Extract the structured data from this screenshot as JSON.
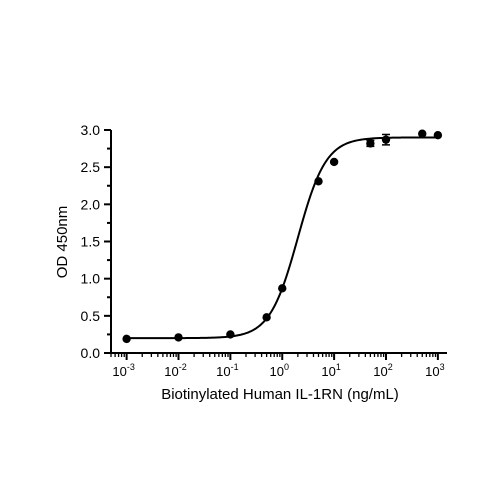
{
  "chart_data": {
    "type": "scatter",
    "xlabel": "Biotinylated Human IL-1RN (ng/mL)",
    "ylabel": "OD 450nm",
    "xscale": "log",
    "xlim": [
      0.0005,
      1500
    ],
    "ylim": [
      0,
      3.0
    ],
    "x_ticks": [
      0.001,
      0.01,
      0.1,
      1,
      10,
      100,
      1000
    ],
    "x_tick_exponents": [
      "-3",
      "-2",
      "-1",
      "0",
      "1",
      "2",
      "3"
    ],
    "x_tick_base": "10",
    "y_ticks": [
      "0.0",
      "0.5",
      "1.0",
      "1.5",
      "2.0",
      "2.5",
      "3.0"
    ],
    "grid": false,
    "series": [
      {
        "points": [
          {
            "x": 0.001,
            "y": 0.19,
            "err": 0
          },
          {
            "x": 0.01,
            "y": 0.21,
            "err": 0
          },
          {
            "x": 0.1,
            "y": 0.25,
            "err": 0
          },
          {
            "x": 0.5,
            "y": 0.48,
            "err": 0
          },
          {
            "x": 1,
            "y": 0.87,
            "err": 0
          },
          {
            "x": 5,
            "y": 2.31,
            "err": 0
          },
          {
            "x": 10,
            "y": 2.57,
            "err": 0
          },
          {
            "x": 50,
            "y": 2.82,
            "err": 0.04
          },
          {
            "x": 100,
            "y": 2.87,
            "err": 0.07
          },
          {
            "x": 500,
            "y": 2.95,
            "err": 0
          },
          {
            "x": 1000,
            "y": 2.93,
            "err": 0
          }
        ],
        "fit": {
          "bottom": 0.2,
          "top": 2.9,
          "ec50": 2.0,
          "hill": 1.6
        }
      }
    ]
  }
}
